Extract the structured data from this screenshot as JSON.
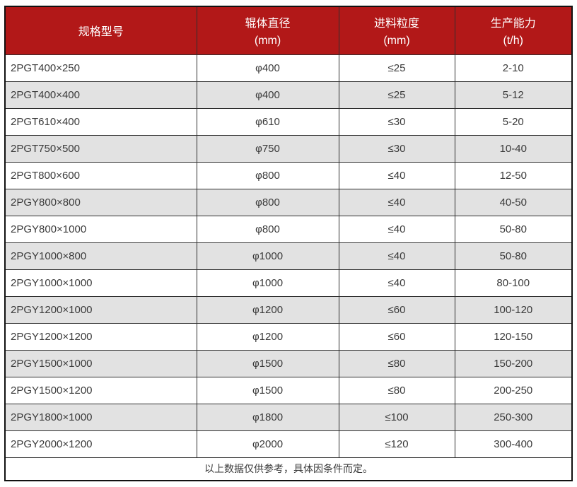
{
  "style": {
    "header_bg": "#b21818",
    "header_text": "#ffffff",
    "stripe_bg": "#e2e2e2",
    "body_text": "#3a3a3a",
    "border_color": "#2e2e2e"
  },
  "chart_data": {
    "type": "table",
    "columns": [
      {
        "title": "规格型号",
        "unit": ""
      },
      {
        "title": "辊体直径",
        "unit": "(mm)"
      },
      {
        "title": "进料粒度",
        "unit": "(mm)"
      },
      {
        "title": "生产能力",
        "unit": "(t/h)"
      }
    ],
    "rows": [
      [
        "2PGT400×250",
        "φ400",
        "≤25",
        "2-10"
      ],
      [
        "2PGT400×400",
        "φ400",
        "≤25",
        "5-12"
      ],
      [
        "2PGT610×400",
        "φ610",
        "≤30",
        "5-20"
      ],
      [
        "2PGT750×500",
        "φ750",
        "≤30",
        "10-40"
      ],
      [
        "2PGT800×600",
        "φ800",
        "≤40",
        "12-50"
      ],
      [
        "2PGY800×800",
        "φ800",
        "≤40",
        "40-50"
      ],
      [
        "2PGY800×1000",
        "φ800",
        "≤40",
        "50-80"
      ],
      [
        "2PGY1000×800",
        "φ1000",
        "≤40",
        "50-80"
      ],
      [
        "2PGY1000×1000",
        "φ1000",
        "≤40",
        "80-100"
      ],
      [
        "2PGY1200×1000",
        "φ1200",
        "≤60",
        "100-120"
      ],
      [
        "2PGY1200×1200",
        "φ1200",
        "≤60",
        "120-150"
      ],
      [
        "2PGY1500×1000",
        "φ1500",
        "≤80",
        "150-200"
      ],
      [
        "2PGY1500×1200",
        "φ1500",
        "≤80",
        "200-250"
      ],
      [
        "2PGY1800×1000",
        "φ1800",
        "≤100",
        "250-300"
      ],
      [
        "2PGY2000×1200",
        "φ2000",
        "≤120",
        "300-400"
      ]
    ],
    "footer_note": "以上数据仅供参考，具体因条件而定。"
  }
}
